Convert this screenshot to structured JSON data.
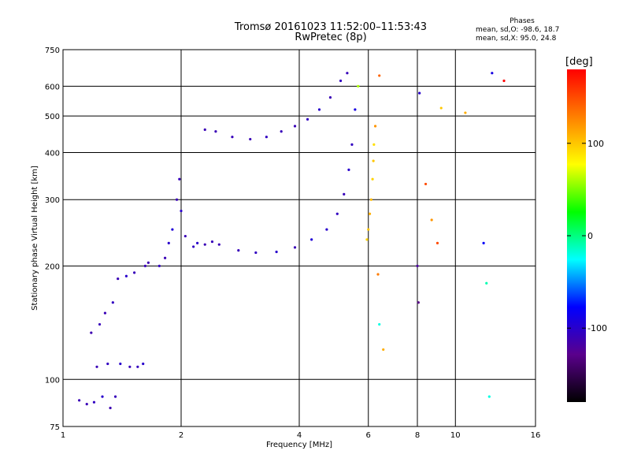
{
  "chart_data": {
    "type": "scatter",
    "title": "Tromsø 20161023 11:52:00–11:53:43",
    "subtitle": "RwPretec (8p)",
    "xlabel": "Frequency [MHz]",
    "ylabel": "Stationary phase Virtual Height [km]",
    "x_scale": "log",
    "y_scale": "log",
    "xlim": [
      1,
      16
    ],
    "ylim": [
      75,
      750
    ],
    "x_ticks": [
      1,
      2,
      4,
      6,
      8,
      10,
      16
    ],
    "x_tick_labels": [
      "1",
      "2",
      "4",
      "6",
      "8",
      "10",
      "16"
    ],
    "y_ticks": [
      75,
      100,
      200,
      300,
      400,
      500,
      600,
      750
    ],
    "y_tick_labels": [
      "75",
      "100",
      "200",
      "300",
      "400",
      "500",
      "600",
      "750"
    ],
    "grid": true,
    "color_scale": {
      "label": "[deg]",
      "ticks": [
        100,
        0,
        -100
      ],
      "tick_labels": [
        "100",
        "0",
        "-100"
      ],
      "range": [
        -180,
        180
      ],
      "colors": [
        "#000000",
        "#5a008c",
        "#0000ff",
        "#00ffff",
        "#00ff00",
        "#ffff00",
        "#ff8000",
        "#ff0000"
      ]
    },
    "legend": {
      "title": "Phases",
      "line1": "mean, sd,O: -98.6, 18.7",
      "line2": "mean, sd,X:  95.0, 24.8"
    },
    "series": [
      {
        "values": [
          [
            1.1,
            88,
            -110
          ],
          [
            1.15,
            86,
            -110
          ],
          [
            1.2,
            87,
            -105
          ],
          [
            1.26,
            90,
            -100
          ],
          [
            1.32,
            84,
            -112
          ],
          [
            1.36,
            90,
            -108
          ],
          [
            1.22,
            108,
            -110
          ],
          [
            1.3,
            110,
            -105
          ],
          [
            1.4,
            110,
            -100
          ],
          [
            1.48,
            108,
            -108
          ],
          [
            1.55,
            108,
            -106
          ],
          [
            1.6,
            110,
            -100
          ],
          [
            1.18,
            133,
            -112
          ],
          [
            1.24,
            140,
            -108
          ],
          [
            1.28,
            150,
            -110
          ],
          [
            1.34,
            160,
            -105
          ],
          [
            1.38,
            185,
            -110
          ],
          [
            1.45,
            188,
            -100
          ],
          [
            1.52,
            192,
            -108
          ],
          [
            1.62,
            200,
            -110
          ],
          [
            1.65,
            204,
            -112
          ]
        ]
      },
      {
        "values": [
          [
            1.76,
            200,
            -105
          ],
          [
            1.82,
            210,
            -110
          ],
          [
            1.86,
            230,
            -100
          ],
          [
            1.9,
            250,
            -95
          ],
          [
            1.95,
            300,
            -110
          ],
          [
            1.98,
            340,
            -108
          ],
          [
            2.0,
            280,
            -100
          ],
          [
            2.05,
            240,
            -110
          ],
          [
            2.15,
            225,
            -105
          ],
          [
            2.2,
            230,
            -100
          ],
          [
            2.3,
            228,
            -110
          ],
          [
            2.4,
            232,
            -108
          ],
          [
            2.3,
            460,
            -110
          ],
          [
            2.45,
            455,
            -110
          ],
          [
            2.7,
            440,
            -108
          ],
          [
            3.0,
            434,
            -110
          ],
          [
            3.3,
            440,
            -105
          ],
          [
            3.6,
            455,
            -108
          ],
          [
            3.9,
            470,
            -110
          ],
          [
            4.2,
            490,
            -105
          ],
          [
            4.5,
            520,
            -100
          ],
          [
            4.8,
            560,
            -110
          ],
          [
            5.1,
            620,
            -105
          ],
          [
            5.3,
            650,
            -108
          ]
        ]
      },
      {
        "values": [
          [
            2.5,
            228,
            -110
          ],
          [
            2.8,
            220,
            -108
          ],
          [
            3.1,
            217,
            -105
          ],
          [
            3.5,
            218,
            -100
          ],
          [
            3.9,
            224,
            -110
          ],
          [
            4.3,
            235,
            -95
          ],
          [
            4.7,
            250,
            -100
          ],
          [
            5.0,
            275,
            -105
          ],
          [
            5.2,
            310,
            -108
          ],
          [
            5.35,
            360,
            -100
          ],
          [
            5.45,
            420,
            -105
          ],
          [
            5.55,
            520,
            -90
          ],
          [
            5.65,
            600,
            60
          ],
          [
            5.95,
            235,
            95
          ],
          [
            6.0,
            250,
            100
          ],
          [
            6.05,
            275,
            110
          ],
          [
            6.1,
            300,
            105
          ],
          [
            6.15,
            340,
            95
          ],
          [
            6.18,
            380,
            100
          ],
          [
            6.2,
            420,
            90
          ],
          [
            6.25,
            470,
            120
          ],
          [
            6.4,
            640,
            140
          ]
        ]
      },
      {
        "values": [
          [
            6.35,
            190,
            130
          ],
          [
            6.4,
            140,
            -20
          ],
          [
            6.55,
            120,
            110
          ],
          [
            8.0,
            200,
            -120
          ],
          [
            8.05,
            160,
            -130
          ],
          [
            8.1,
            575,
            -100
          ],
          [
            8.4,
            330,
            150
          ],
          [
            8.7,
            265,
            120
          ],
          [
            9.0,
            230,
            150
          ],
          [
            9.2,
            525,
            100
          ],
          [
            10.6,
            510,
            110
          ],
          [
            11.8,
            230,
            -80
          ],
          [
            12.0,
            180,
            -10
          ],
          [
            12.2,
            90,
            -20
          ],
          [
            12.4,
            650,
            -90
          ],
          [
            13.3,
            620,
            180
          ]
        ]
      }
    ]
  }
}
